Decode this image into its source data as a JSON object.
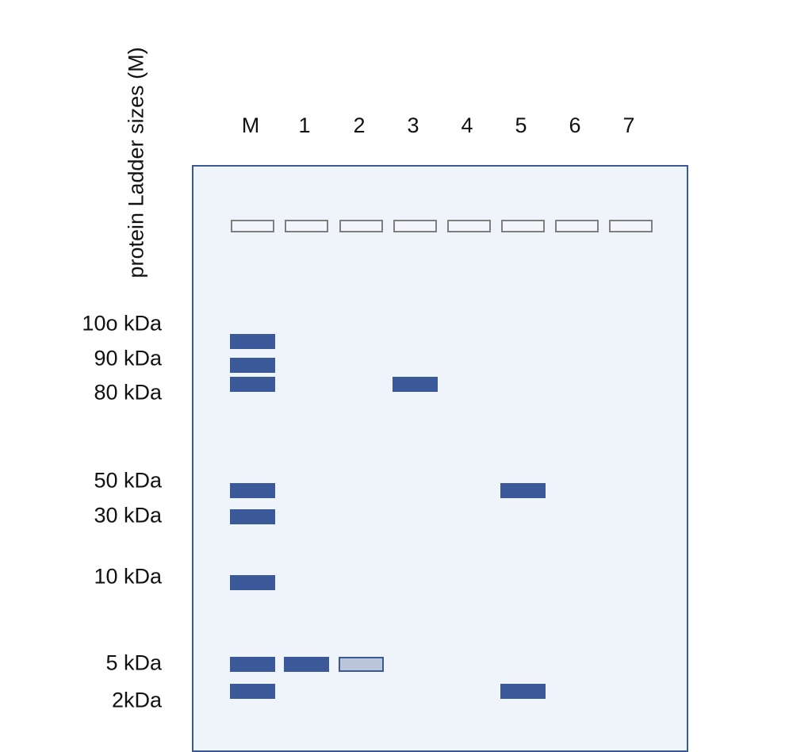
{
  "axis_title": "protein Ladder sizes (M)",
  "lanes": [
    "M",
    "1",
    "2",
    "3",
    "4",
    "5",
    "6",
    "7"
  ],
  "size_labels": [
    "10o kDa",
    "90 kDa",
    "80 kDa",
    "50 kDa",
    "30 kDa",
    "10 kDa",
    "5 kDa",
    "2kDa"
  ],
  "colors": {
    "gel_background": "#eff3fa",
    "band": "#3b5898",
    "faint_band": "#bcc6da",
    "well_border": "#7f7f7f"
  },
  "bands": [
    {
      "lane": "M",
      "size": "10o kDa",
      "intensity": "strong"
    },
    {
      "lane": "M",
      "size": "90 kDa",
      "intensity": "strong"
    },
    {
      "lane": "M",
      "size": "80 kDa",
      "intensity": "strong"
    },
    {
      "lane": "M",
      "size": "50 kDa",
      "intensity": "strong"
    },
    {
      "lane": "M",
      "size": "30 kDa",
      "intensity": "strong"
    },
    {
      "lane": "M",
      "size": "10 kDa",
      "intensity": "strong"
    },
    {
      "lane": "M",
      "size": "5 kDa",
      "intensity": "strong"
    },
    {
      "lane": "M",
      "size": "2kDa",
      "intensity": "strong"
    },
    {
      "lane": "1",
      "size": "5 kDa",
      "intensity": "strong"
    },
    {
      "lane": "2",
      "size": "5 kDa",
      "intensity": "faint"
    },
    {
      "lane": "3",
      "size": "80 kDa",
      "intensity": "strong"
    },
    {
      "lane": "5",
      "size": "50 kDa",
      "intensity": "strong"
    },
    {
      "lane": "5",
      "size": "2kDa",
      "intensity": "strong"
    }
  ]
}
